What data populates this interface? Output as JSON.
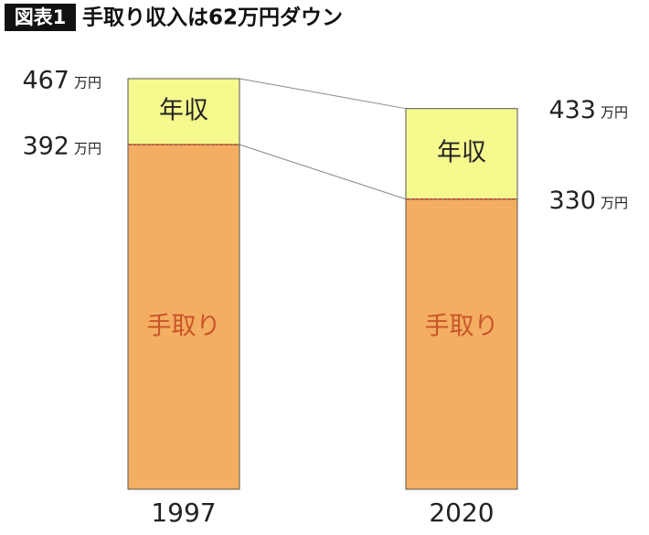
{
  "chart_data": {
    "type": "bar",
    "overlay": true,
    "badge": "図表1",
    "title": "手取り収入は62万円ダウン",
    "unit": "万円",
    "categories": [
      "1997",
      "2020"
    ],
    "series": [
      {
        "name": "年収",
        "color": "#f6f98e",
        "values": [
          467,
          433
        ]
      },
      {
        "name": "手取り",
        "color": "#f4ae62",
        "values": [
          392,
          330
        ]
      }
    ]
  }
}
